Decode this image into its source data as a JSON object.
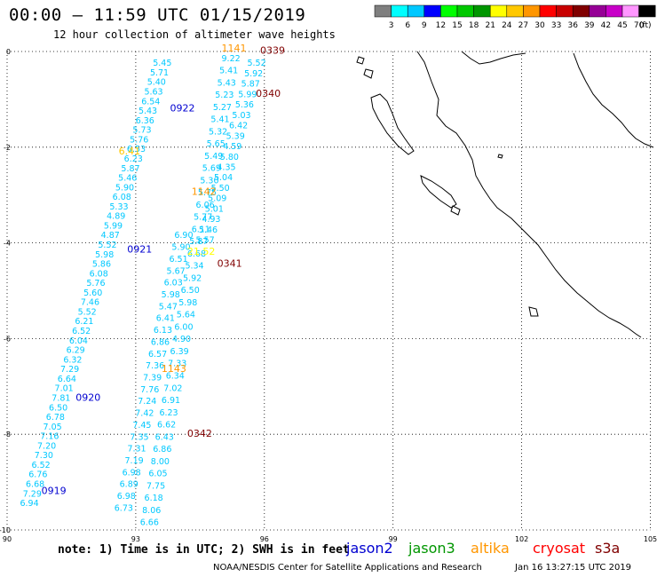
{
  "title": "00:00 – 11:59 UTC 01/15/2019",
  "subtitle": "12 hour collection of altimeter wave heights",
  "note": "note: 1) Time is in UTC; 2) SWH is in feet",
  "credit": "NOAA/NESDIS Center for Satellite Applications and Research",
  "timestamp": "Jan 16 13:27:15 UTC 2019",
  "legend": {
    "unit": "(ft)",
    "ticks": [
      "3",
      "6",
      "9",
      "12",
      "15",
      "18",
      "21",
      "24",
      "27",
      "30",
      "33",
      "36",
      "39",
      "42",
      "45",
      "70"
    ],
    "colors": [
      "#7f7f7f",
      "#00ffff",
      "#00c8ff",
      "#0000ff",
      "#00ff00",
      "#00c800",
      "#009600",
      "#ffff00",
      "#ffc800",
      "#ff9600",
      "#ff0000",
      "#c80000",
      "#800000",
      "#960096",
      "#c800c8",
      "#ff96ff",
      "#000000"
    ]
  },
  "satellites": [
    {
      "name": "jason2",
      "color": "#0000d0"
    },
    {
      "name": "jason3",
      "color": "#009600"
    },
    {
      "name": "altika",
      "color": "#ff9600"
    },
    {
      "name": "cryosat",
      "color": "#ff0000"
    },
    {
      "name": "s3a",
      "color": "#800000"
    }
  ],
  "axes": {
    "x_ticks": [
      "90",
      "93",
      "96",
      "99",
      "102",
      "105"
    ],
    "y_ticks": [
      "0",
      "-2",
      "-4",
      "-6",
      "-8",
      "-10"
    ]
  },
  "track_a": {
    "color": "#00c8ff",
    "lon_start": 90.3,
    "lat_start": -9.5,
    "lon_end": 93.4,
    "lat_end": -0.3,
    "values": [
      "6.94",
      "7.29",
      "6.68",
      "6.76",
      "6.52",
      "7.30",
      "7.20",
      "7.16",
      "7.05",
      "6.78",
      "6.50",
      "7.81",
      "7.01",
      "6.64",
      "7.29",
      "6.32",
      "6.29",
      "6.04",
      "6.52",
      "6.21",
      "5.52",
      "7.46",
      "5.60",
      "5.76",
      "6.08",
      "5.86",
      "5.98",
      "5.52",
      "4.87",
      "5.99",
      "4.89",
      "5.33",
      "6.08",
      "5.90",
      "5.46",
      "5.87",
      "6.23",
      "6.53",
      "5.76",
      "5.73",
      "6.36",
      "5.43",
      "6.54",
      "5.63",
      "5.40",
      "5.71",
      "5.45"
    ]
  },
  "track_b": {
    "color": "#00c8ff",
    "lon_start": 93.1,
    "lat_start": -9.9,
    "lon_end": 95.0,
    "lat_end": -0.2,
    "values": [
      "6.66",
      "8.06",
      "6.18",
      "7.75",
      "6.05",
      "8.00",
      "6.86",
      "6.43",
      "6.62",
      "6.23",
      "6.91",
      "7.02",
      "6.34",
      "7.33",
      "6.39",
      "4.90",
      "6.00",
      "5.64",
      "5.98",
      "6.50",
      "5.92",
      "5.34",
      "6.68",
      "5.87",
      "6.11",
      "5.77",
      "6.06",
      "5.75",
      "5.30",
      "5.69",
      "5.49",
      "5.65",
      "5.32",
      "5.41",
      "5.27",
      "5.23",
      "5.43",
      "5.41",
      "9.22"
    ]
  },
  "track_c": {
    "color": "#00c8ff",
    "lon_start": 92.5,
    "lat_start": -9.6,
    "lon_end": 93.9,
    "lat_end": -3.9,
    "values": [
      "6.73",
      "6.98",
      "6.89",
      "6.98",
      "7.19",
      "7.31",
      "7.35",
      "7.45",
      "7.42",
      "7.24",
      "7.76",
      "7.39",
      "7.36",
      "6.57",
      "6.86",
      "6.13",
      "6.41",
      "5.47",
      "5.98",
      "6.03",
      "5.67",
      "6.51",
      "5.90",
      "6.90"
    ]
  },
  "track_d": {
    "color": "#00c8ff",
    "lon_start": 94.4,
    "lat_start": -4.0,
    "lon_end": 95.6,
    "lat_end": -0.3,
    "values": [
      "5.57",
      "5.46",
      "4.93",
      "5.01",
      "5.09",
      "5.50",
      "5.04",
      "4.35",
      "5.80",
      "4.59",
      "5.39",
      "6.42",
      "5.03",
      "5.36",
      "5.99",
      "5.87",
      "5.92",
      "5.52"
    ]
  },
  "time_labels": [
    {
      "text": "0339",
      "lon": 95.9,
      "lat": -0.05,
      "color": "#800000"
    },
    {
      "text": "0340",
      "lon": 95.8,
      "lat": -0.95,
      "color": "#800000"
    },
    {
      "text": "0341",
      "lon": 94.9,
      "lat": -4.5,
      "color": "#800000"
    },
    {
      "text": "0342",
      "lon": 94.2,
      "lat": -8.05,
      "color": "#800000"
    },
    {
      "text": "0922",
      "lon": 93.8,
      "lat": -1.25,
      "color": "#0000d0"
    },
    {
      "text": "0921",
      "lon": 92.8,
      "lat": -4.2,
      "color": "#0000d0"
    },
    {
      "text": "0920",
      "lon": 91.6,
      "lat": -7.3,
      "color": "#0000d0"
    },
    {
      "text": "0919",
      "lon": 90.8,
      "lat": -9.25,
      "color": "#0000d0"
    },
    {
      "text": "1141",
      "lon": 95.0,
      "lat": -0.0,
      "color": "#ff9600"
    },
    {
      "text": "1142",
      "lon": 94.3,
      "lat": -3.0,
      "color": "#ff9600"
    },
    {
      "text": "1143",
      "lon": 93.6,
      "lat": -6.7,
      "color": "#ff9600"
    },
    {
      "text": "21.52",
      "lon": 94.2,
      "lat": -4.25,
      "color": "#ffff00"
    },
    {
      "text": "6.41",
      "lon": 92.6,
      "lat": -2.15,
      "color": "#ffc800"
    }
  ]
}
